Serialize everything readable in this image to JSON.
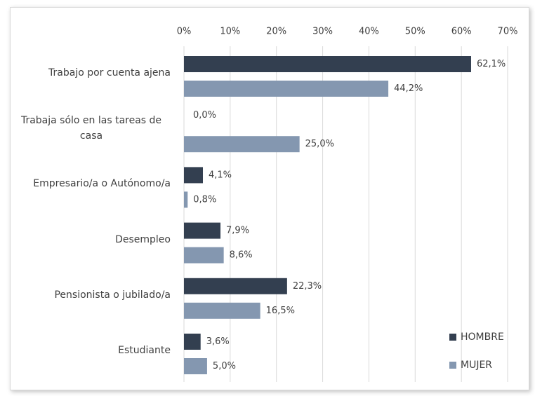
{
  "chart_data": {
    "type": "bar",
    "orientation": "horizontal",
    "categories": [
      "Trabajo por cuenta ajena",
      "Trabaja sólo en las tareas de casa",
      "Empresario/a o Autónomo/a",
      "Desempleo",
      "Pensionista o jubilado/a",
      "Estudiante"
    ],
    "series": [
      {
        "name": "HOMBRE",
        "color": "#333f50",
        "values": [
          62.1,
          0.0,
          4.1,
          7.9,
          22.3,
          3.6
        ],
        "value_labels": [
          "62,1%",
          "0,0%",
          "4,1%",
          "7,9%",
          "22,3%",
          "3,6%"
        ]
      },
      {
        "name": "MUJER",
        "color": "#8497b0",
        "values": [
          44.2,
          25.0,
          0.8,
          8.6,
          16.5,
          5.0
        ],
        "value_labels": [
          "44,2%",
          "25,0%",
          "0,8%",
          "8,6%",
          "16,5%",
          "5,0%"
        ]
      }
    ],
    "xlim": [
      0,
      70
    ],
    "xticks": [
      {
        "value": 0,
        "label": "0%"
      },
      {
        "value": 10,
        "label": "10%"
      },
      {
        "value": 20,
        "label": "20%"
      },
      {
        "value": 30,
        "label": "30%"
      },
      {
        "value": 40,
        "label": "40%"
      },
      {
        "value": 50,
        "label": "50%"
      },
      {
        "value": 60,
        "label": "60%"
      },
      {
        "value": 70,
        "label": "70%"
      }
    ],
    "grid": true,
    "legend": "lower right"
  }
}
